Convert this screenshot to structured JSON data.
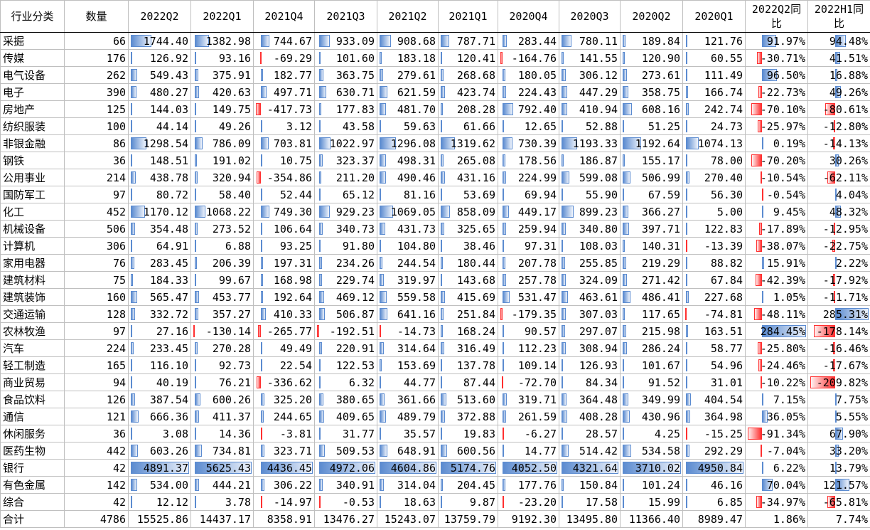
{
  "table": {
    "header": [
      "行业分类",
      "数量",
      "2022Q2",
      "2022Q1",
      "2021Q4",
      "2021Q3",
      "2021Q2",
      "2021Q1",
      "2020Q4",
      "2020Q3",
      "2020Q2",
      "2020Q1",
      "2022Q2同比",
      "2022H1同比"
    ],
    "rows": [
      [
        "采掘",
        "66",
        "1744.40",
        "1382.98",
        "744.67",
        "933.09",
        "908.68",
        "787.71",
        "283.44",
        "780.11",
        "189.84",
        "121.76",
        "91.97%",
        "94.48%"
      ],
      [
        "传媒",
        "176",
        "126.92",
        "93.16",
        "-69.29",
        "101.60",
        "183.18",
        "120.41",
        "-164.76",
        "141.55",
        "120.90",
        "60.55",
        "-30.71%",
        "41.51%"
      ],
      [
        "电气设备",
        "262",
        "549.43",
        "375.91",
        "182.77",
        "363.75",
        "279.61",
        "268.68",
        "180.05",
        "306.12",
        "273.61",
        "111.49",
        "96.50%",
        "16.88%"
      ],
      [
        "电子",
        "390",
        "480.27",
        "420.63",
        "497.71",
        "630.71",
        "621.59",
        "423.74",
        "224.43",
        "447.29",
        "358.75",
        "166.74",
        "-22.73%",
        "49.26%"
      ],
      [
        "房地产",
        "125",
        "144.03",
        "149.75",
        "-417.73",
        "177.83",
        "481.70",
        "208.28",
        "792.40",
        "410.94",
        "608.16",
        "242.74",
        "-70.10%",
        "-80.61%"
      ],
      [
        "纺织服装",
        "100",
        "44.14",
        "49.26",
        "3.12",
        "43.58",
        "59.63",
        "61.66",
        "12.65",
        "52.88",
        "51.25",
        "24.73",
        "-25.97%",
        "-12.80%"
      ],
      [
        "非银金融",
        "86",
        "1298.54",
        "786.09",
        "703.81",
        "1022.97",
        "1296.08",
        "1319.62",
        "730.39",
        "1193.33",
        "1192.64",
        "1074.13",
        "0.19%",
        "-14.13%"
      ],
      [
        "钢铁",
        "36",
        "148.51",
        "191.02",
        "10.75",
        "323.37",
        "498.31",
        "265.08",
        "178.56",
        "186.87",
        "155.17",
        "78.00",
        "-70.20%",
        "30.26%"
      ],
      [
        "公用事业",
        "214",
        "438.78",
        "320.94",
        "-354.86",
        "211.20",
        "490.46",
        "431.16",
        "224.99",
        "599.08",
        "506.99",
        "270.40",
        "-10.54%",
        "-62.11%"
      ],
      [
        "国防军工",
        "97",
        "80.72",
        "58.40",
        "52.44",
        "65.12",
        "81.16",
        "53.69",
        "69.94",
        "55.90",
        "67.59",
        "56.30",
        "-0.54%",
        "4.04%"
      ],
      [
        "化工",
        "452",
        "1170.12",
        "1068.22",
        "749.30",
        "929.23",
        "1069.05",
        "858.09",
        "449.17",
        "899.23",
        "366.27",
        "5.00",
        "9.45%",
        "48.32%"
      ],
      [
        "机械设备",
        "506",
        "354.48",
        "273.52",
        "106.64",
        "340.73",
        "431.73",
        "325.65",
        "259.94",
        "340.80",
        "397.71",
        "122.83",
        "-17.89%",
        "-12.95%"
      ],
      [
        "计算机",
        "306",
        "64.91",
        "6.88",
        "93.25",
        "91.80",
        "104.80",
        "38.46",
        "97.31",
        "108.03",
        "140.31",
        "-13.39",
        "-38.07%",
        "-22.75%"
      ],
      [
        "家用电器",
        "76",
        "283.45",
        "206.39",
        "197.31",
        "234.26",
        "244.54",
        "180.44",
        "207.78",
        "255.85",
        "219.29",
        "88.82",
        "15.91%",
        "2.22%"
      ],
      [
        "建筑材料",
        "75",
        "184.33",
        "99.67",
        "168.98",
        "229.74",
        "319.97",
        "143.68",
        "257.78",
        "324.09",
        "271.42",
        "67.84",
        "-42.39%",
        "-17.92%"
      ],
      [
        "建筑装饰",
        "160",
        "565.47",
        "453.77",
        "192.64",
        "469.12",
        "559.58",
        "415.69",
        "531.47",
        "463.61",
        "486.41",
        "227.68",
        "1.05%",
        "-11.71%"
      ],
      [
        "交通运输",
        "128",
        "332.72",
        "357.27",
        "410.33",
        "506.87",
        "641.16",
        "251.84",
        "-179.35",
        "307.03",
        "117.65",
        "-74.81",
        "-48.11%",
        "285.31%"
      ],
      [
        "农林牧渔",
        "97",
        "27.16",
        "-130.14",
        "-265.77",
        "-192.51",
        "-14.73",
        "168.24",
        "90.57",
        "297.07",
        "215.98",
        "163.51",
        "284.45%",
        "-178.14%"
      ],
      [
        "汽车",
        "224",
        "233.45",
        "270.28",
        "49.49",
        "220.91",
        "314.64",
        "316.49",
        "112.23",
        "308.94",
        "286.24",
        "58.77",
        "-25.80%",
        "-16.46%"
      ],
      [
        "轻工制造",
        "165",
        "116.10",
        "92.73",
        "22.54",
        "122.53",
        "153.69",
        "137.78",
        "109.14",
        "126.93",
        "101.67",
        "54.96",
        "-24.46%",
        "-17.67%"
      ],
      [
        "商业贸易",
        "94",
        "40.19",
        "76.21",
        "-336.62",
        "6.32",
        "44.77",
        "87.44",
        "-72.70",
        "84.34",
        "91.52",
        "31.01",
        "-10.22%",
        "-209.82%"
      ],
      [
        "食品饮料",
        "126",
        "387.54",
        "600.26",
        "325.20",
        "380.65",
        "361.66",
        "513.60",
        "319.71",
        "364.48",
        "349.99",
        "404.54",
        "7.15%",
        "7.75%"
      ],
      [
        "通信",
        "121",
        "666.36",
        "411.37",
        "244.65",
        "409.65",
        "489.79",
        "372.88",
        "261.59",
        "408.28",
        "430.96",
        "364.98",
        "36.05%",
        "5.55%"
      ],
      [
        "休闲服务",
        "36",
        "3.08",
        "14.36",
        "-3.81",
        "31.77",
        "35.57",
        "19.83",
        "-6.27",
        "28.57",
        "4.25",
        "-15.25",
        "-91.34%",
        "67.90%"
      ],
      [
        "医药生物",
        "442",
        "603.26",
        "734.81",
        "323.71",
        "509.53",
        "648.91",
        "600.56",
        "14.77",
        "514.42",
        "534.58",
        "292.29",
        "-7.04%",
        "33.20%"
      ],
      [
        "银行",
        "42",
        "4891.37",
        "5625.43",
        "4436.45",
        "4972.06",
        "4604.86",
        "5174.76",
        "4052.50",
        "4321.64",
        "3710.02",
        "4950.84",
        "6.22%",
        "13.79%"
      ],
      [
        "有色金属",
        "142",
        "534.00",
        "444.21",
        "306.22",
        "340.91",
        "314.04",
        "204.45",
        "177.76",
        "150.84",
        "101.24",
        "46.16",
        "70.04%",
        "121.57%"
      ],
      [
        "综合",
        "42",
        "12.12",
        "3.78",
        "-14.97",
        "-0.53",
        "18.63",
        "9.87",
        "-23.20",
        "17.58",
        "15.99",
        "6.85",
        "-34.97%",
        "-65.81%"
      ],
      [
        "合计",
        "4786",
        "15525.86",
        "14437.17",
        "8358.91",
        "13476.27",
        "15243.07",
        "13759.79",
        "9192.30",
        "13495.80",
        "11366.40",
        "8989.47",
        "1.86%",
        "7.74%"
      ]
    ]
  }
}
